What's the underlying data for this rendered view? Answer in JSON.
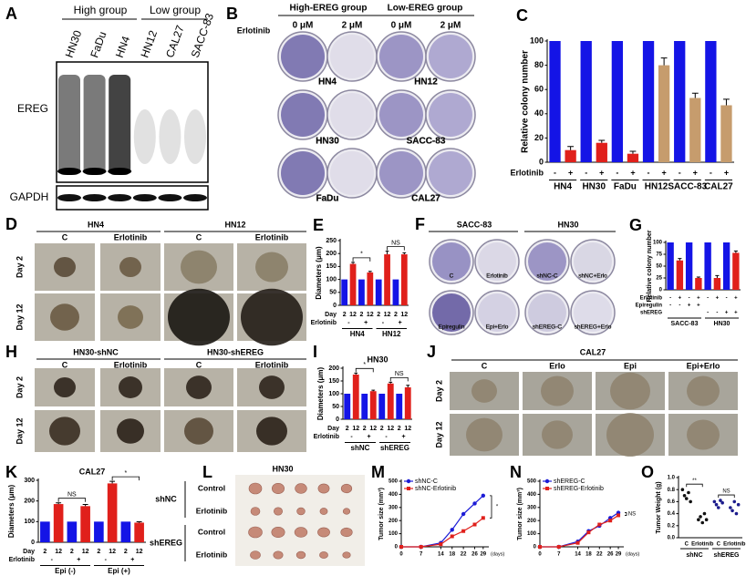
{
  "panels": {
    "A": {
      "letter": "A",
      "groups": [
        "High group",
        "Low group"
      ],
      "lanes": [
        "HN30",
        "FaDu",
        "HN4",
        "HN12",
        "CAL27",
        "SACC-83"
      ],
      "blots": [
        "EREG",
        "GAPDH"
      ]
    },
    "B": {
      "letter": "B",
      "treatment": "Erlotinib",
      "groups": [
        "High-EREG group",
        "Low-EREG group"
      ],
      "doses": [
        "0 μM",
        "2 μM",
        "0 μM",
        "2 μM"
      ],
      "cells": [
        "HN4",
        "HN12",
        "HN30",
        "SACC-83",
        "FaDu",
        "CAL27"
      ]
    },
    "D": {
      "letter": "D",
      "cells": [
        "HN4",
        "HN12"
      ],
      "conditions": [
        "C",
        "Erlotinib",
        "C",
        "Erlotinib"
      ],
      "days": [
        "Day 2",
        "Day 12"
      ]
    },
    "F": {
      "letter": "F",
      "cells": [
        "SACC-83",
        "HN30"
      ],
      "plates": [
        "C",
        "Erlotinib",
        "shNC-C",
        "shNC+Erlo",
        "Epiregulin",
        "Epi+Erlo",
        "shEREG-C",
        "shEREG+Erlo"
      ]
    },
    "H": {
      "letter": "H",
      "cells": [
        "HN30-shNC",
        "HN30-shEREG"
      ],
      "conditions": [
        "C",
        "Erlotinib",
        "C",
        "Erlotinib"
      ],
      "days": [
        "Day 2",
        "Day 12"
      ]
    },
    "J": {
      "letter": "J",
      "cell": "CAL27",
      "conditions": [
        "C",
        "Erlo",
        "Epi",
        "Epi+Erlo"
      ],
      "days": [
        "Day 2",
        "Day 12"
      ]
    },
    "L": {
      "letter": "L",
      "title": "HN30",
      "groups": [
        {
          "name": "shNC",
          "rows": [
            "Control",
            "Erlotinib"
          ]
        },
        {
          "name": "shEREG",
          "rows": [
            "Control",
            "Erlotinib"
          ]
        }
      ]
    }
  },
  "chart_data": [
    {
      "letter": "C",
      "type": "bar",
      "ylabel": "Relative colony number",
      "ylim": [
        0,
        100
      ],
      "yticks": [
        0,
        20,
        40,
        60,
        80,
        100
      ],
      "values": [
        100,
        10,
        100,
        16,
        100,
        7,
        100,
        80,
        100,
        53,
        100,
        47
      ],
      "errors": [
        null,
        3,
        null,
        2,
        null,
        2,
        null,
        6,
        null,
        4,
        null,
        5
      ],
      "colors": [
        "#1414e6",
        "#e0201b",
        "#1414e6",
        "#e0201b",
        "#1414e6",
        "#e0201b",
        "#1414e6",
        "#c69c6d",
        "#1414e6",
        "#c69c6d",
        "#1414e6",
        "#c69c6d"
      ],
      "rows": [
        {
          "name": "Erlotinib",
          "labels": [
            "-",
            "+",
            "-",
            "+",
            "-",
            "+",
            "-",
            "+",
            "-",
            "+",
            "-",
            "+"
          ]
        }
      ],
      "groups": [
        "HN4",
        "HN30",
        "FaDu",
        "HN12",
        "SACC-83",
        "CAL27"
      ]
    },
    {
      "letter": "E",
      "type": "bar",
      "ylabel": "Diameters (μm)",
      "ylim": [
        0,
        250
      ],
      "yticks": [
        0,
        50,
        100,
        150,
        200,
        250
      ],
      "values": [
        100,
        160,
        100,
        127,
        100,
        197,
        100,
        197
      ],
      "errors": [
        null,
        6,
        null,
        4,
        null,
        12,
        null,
        6
      ],
      "colors": [
        "#1414e6",
        "#e0201b",
        "#1414e6",
        "#e0201b",
        "#1414e6",
        "#e0201b",
        "#1414e6",
        "#e0201b"
      ],
      "rows": [
        {
          "name": "Day",
          "labels": [
            2,
            12,
            2,
            12,
            2,
            12,
            2,
            12
          ]
        },
        {
          "name": "Erlotinib",
          "labels": [
            "-",
            "+",
            "-",
            "+"
          ]
        }
      ],
      "groups": [
        "HN4",
        "HN12"
      ],
      "annotations": [
        "*",
        "NS"
      ]
    },
    {
      "letter": "G",
      "type": "bar",
      "ylabel": "Relative colony number",
      "ylim": [
        0,
        100
      ],
      "yticks": [
        0,
        25,
        50,
        75,
        100
      ],
      "values": [
        100,
        62,
        100,
        25,
        100,
        25,
        100,
        78
      ],
      "errors": [
        null,
        4,
        null,
        2,
        null,
        5,
        null,
        4
      ],
      "colors": [
        "#1414e6",
        "#e0201b",
        "#1414e6",
        "#e0201b",
        "#1414e6",
        "#e0201b",
        "#1414e6",
        "#e0201b"
      ],
      "rows": [
        {
          "name": "Erlotinib",
          "labels": [
            "-",
            "+",
            "-",
            "+",
            "-",
            "+",
            "-",
            "+"
          ]
        },
        {
          "name": "Epiregulin",
          "labels": [
            "-",
            "-",
            "+",
            "+",
            null,
            null,
            null,
            null
          ]
        },
        {
          "name": "shEREG",
          "labels": [
            null,
            null,
            null,
            null,
            "-",
            "-",
            "+",
            "+"
          ]
        }
      ],
      "groups": [
        "SACC-83",
        "HN30"
      ]
    },
    {
      "letter": "I",
      "type": "bar",
      "title": "HN30",
      "ylabel": "Diameters (μm)",
      "ylim": [
        0,
        200
      ],
      "yticks": [
        0,
        50,
        100,
        150,
        200
      ],
      "values": [
        100,
        175,
        100,
        110,
        100,
        140,
        100,
        125
      ],
      "errors": [
        null,
        6,
        null,
        4,
        null,
        5,
        null,
        8
      ],
      "colors": [
        "#1414e6",
        "#e0201b",
        "#1414e6",
        "#e0201b",
        "#1414e6",
        "#e0201b",
        "#1414e6",
        "#e0201b"
      ],
      "rows": [
        {
          "name": "Day",
          "labels": [
            2,
            12,
            2,
            12,
            2,
            12,
            2,
            12
          ]
        },
        {
          "name": "Erlotinib",
          "labels": [
            "-",
            "+",
            "-",
            "+"
          ]
        }
      ],
      "groups": [
        "shNC",
        "shEREG"
      ],
      "annotations": [
        "*",
        "NS"
      ]
    },
    {
      "letter": "K",
      "type": "bar",
      "title": "CAL27",
      "ylabel": "Diameters (μm)",
      "ylim": [
        0,
        300
      ],
      "yticks": [
        0,
        100,
        200,
        300
      ],
      "values": [
        100,
        185,
        100,
        175,
        100,
        285,
        100,
        95
      ],
      "errors": [
        null,
        6,
        null,
        8,
        null,
        10,
        null,
        4
      ],
      "colors": [
        "#1414e6",
        "#e0201b",
        "#1414e6",
        "#e0201b",
        "#1414e6",
        "#e0201b",
        "#1414e6",
        "#e0201b"
      ],
      "rows": [
        {
          "name": "Day",
          "labels": [
            2,
            12,
            2,
            12,
            2,
            12,
            2,
            12
          ]
        },
        {
          "name": "Erlotinib",
          "labels": [
            "-",
            "+",
            "-",
            "+"
          ]
        }
      ],
      "groups": [
        "Epi (-)",
        "Epi (+)"
      ],
      "annotations": [
        "NS",
        "*"
      ]
    },
    {
      "letter": "M",
      "type": "line",
      "ylabel": "Tumor size (mm³)",
      "xlabel": "(days)",
      "x": [
        0,
        7,
        14,
        18,
        22,
        26,
        29
      ],
      "xlim": [
        0,
        31
      ],
      "xticks": [
        0,
        7,
        14,
        18,
        22,
        26,
        29
      ],
      "ylim": [
        0,
        500
      ],
      "yticks": [
        0,
        100,
        200,
        300,
        400,
        500
      ],
      "series": [
        {
          "name": "shNC-C",
          "color": "#1c1cd6",
          "marker": "circle",
          "values": [
            0,
            0,
            30,
            130,
            250,
            330,
            390
          ]
        },
        {
          "name": "shNC-Erlotinib",
          "color": "#e0201b",
          "marker": "square",
          "values": [
            0,
            0,
            20,
            80,
            120,
            170,
            220
          ]
        }
      ],
      "annotations": [
        "*"
      ]
    },
    {
      "letter": "N",
      "type": "line",
      "ylabel": "Tumor size (mm³)",
      "xlabel": "(days)",
      "x": [
        0,
        7,
        14,
        18,
        22,
        26,
        29
      ],
      "xlim": [
        0,
        31
      ],
      "xticks": [
        0,
        7,
        14,
        18,
        22,
        26,
        29
      ],
      "ylim": [
        0,
        500
      ],
      "yticks": [
        0,
        100,
        200,
        300,
        400,
        500
      ],
      "series": [
        {
          "name": "shEREG-C",
          "color": "#1c1cd6",
          "marker": "circle",
          "values": [
            0,
            0,
            40,
            120,
            160,
            220,
            260
          ]
        },
        {
          "name": "shEREG-Erlotinib",
          "color": "#e0201b",
          "marker": "square",
          "values": [
            0,
            0,
            30,
            110,
            170,
            200,
            240
          ]
        }
      ],
      "annotations": [
        "NS"
      ]
    },
    {
      "letter": "O",
      "type": "dot",
      "ylabel": "Tumor Weight (g)",
      "ylim": [
        0,
        1
      ],
      "yticks": [
        {
          "value": 0,
          "label": "0.0"
        },
        {
          "value": 0.2,
          "label": "0.2"
        },
        {
          "value": 0.4,
          "label": "0.4"
        },
        {
          "value": 0.6,
          "label": "0.6"
        },
        {
          "value": 0.8,
          "label": "0.8"
        },
        {
          "value": 1,
          "label": "1.0"
        }
      ],
      "categories": [
        "C",
        "Erlotinib",
        "C",
        "Erlotinib"
      ],
      "groups": [
        "shNC",
        "shEREG"
      ],
      "points": [
        [
          0.8,
          0.7,
          0.65,
          0.75,
          0.6
        ],
        [
          0.3,
          0.35,
          0.25,
          0.4,
          0.3
        ],
        [
          0.6,
          0.55,
          0.5,
          0.62,
          0.58
        ],
        [
          0.5,
          0.45,
          0.6,
          0.4,
          0.55
        ]
      ],
      "colors": [
        "#111111",
        "#111111",
        "#1c1c8c",
        "#1c1c8c"
      ],
      "annotations": [
        "**",
        "NS"
      ]
    }
  ]
}
